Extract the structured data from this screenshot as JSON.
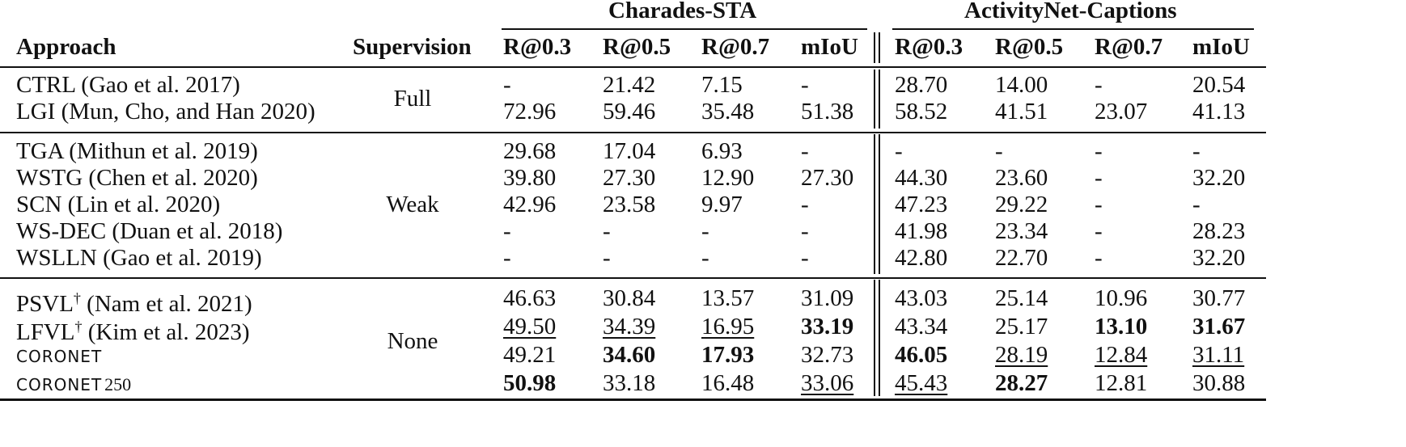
{
  "header": {
    "group_charades": "Charades-STA",
    "group_activitynet": "ActivityNet-Captions",
    "approach": "Approach",
    "supervision": "Supervision",
    "metrics": [
      "R@0.3",
      "R@0.5",
      "R@0.7",
      "mIoU",
      "R@0.3",
      "R@0.5",
      "R@0.7",
      "mIoU"
    ]
  },
  "groups": [
    {
      "supervision": "Full",
      "rows": [
        {
          "approach": "CTRL (Gao et al. 2017)",
          "dagger": "",
          "name_sc": "",
          "name_sub": "",
          "cells": [
            {
              "v": "-"
            },
            {
              "v": "21.42"
            },
            {
              "v": "7.15"
            },
            {
              "v": "-"
            },
            {
              "v": "28.70"
            },
            {
              "v": "14.00"
            },
            {
              "v": "-"
            },
            {
              "v": "20.54"
            }
          ]
        },
        {
          "approach": "LGI (Mun, Cho, and Han 2020)",
          "dagger": "",
          "name_sc": "",
          "name_sub": "",
          "cells": [
            {
              "v": "72.96"
            },
            {
              "v": "59.46"
            },
            {
              "v": "35.48"
            },
            {
              "v": "51.38"
            },
            {
              "v": "58.52"
            },
            {
              "v": "41.51"
            },
            {
              "v": "23.07"
            },
            {
              "v": "41.13"
            }
          ]
        }
      ]
    },
    {
      "supervision": "Weak",
      "rows": [
        {
          "approach": "TGA (Mithun et al. 2019)",
          "dagger": "",
          "name_sc": "",
          "name_sub": "",
          "cells": [
            {
              "v": "29.68"
            },
            {
              "v": "17.04"
            },
            {
              "v": "6.93"
            },
            {
              "v": "-"
            },
            {
              "v": "-"
            },
            {
              "v": "-"
            },
            {
              "v": "-"
            },
            {
              "v": "-"
            }
          ]
        },
        {
          "approach": "WSTG (Chen et al. 2020)",
          "dagger": "",
          "name_sc": "",
          "name_sub": "",
          "cells": [
            {
              "v": "39.80"
            },
            {
              "v": "27.30"
            },
            {
              "v": "12.90"
            },
            {
              "v": "27.30"
            },
            {
              "v": "44.30"
            },
            {
              "v": "23.60"
            },
            {
              "v": "-"
            },
            {
              "v": "32.20"
            }
          ]
        },
        {
          "approach": "SCN (Lin et al. 2020)",
          "dagger": "",
          "name_sc": "",
          "name_sub": "",
          "cells": [
            {
              "v": "42.96"
            },
            {
              "v": "23.58"
            },
            {
              "v": "9.97"
            },
            {
              "v": "-"
            },
            {
              "v": "47.23"
            },
            {
              "v": "29.22"
            },
            {
              "v": "-"
            },
            {
              "v": "-"
            }
          ]
        },
        {
          "approach": "WS-DEC (Duan et al. 2018)",
          "dagger": "",
          "name_sc": "",
          "name_sub": "",
          "cells": [
            {
              "v": "-"
            },
            {
              "v": "-"
            },
            {
              "v": "-"
            },
            {
              "v": "-"
            },
            {
              "v": "41.98"
            },
            {
              "v": "23.34"
            },
            {
              "v": "-"
            },
            {
              "v": "28.23"
            }
          ]
        },
        {
          "approach": "WSLLN (Gao et al. 2019)",
          "dagger": "",
          "name_sc": "",
          "name_sub": "",
          "cells": [
            {
              "v": "-"
            },
            {
              "v": "-"
            },
            {
              "v": "-"
            },
            {
              "v": "-"
            },
            {
              "v": "42.80"
            },
            {
              "v": "22.70"
            },
            {
              "v": "-"
            },
            {
              "v": "32.20"
            }
          ]
        }
      ]
    },
    {
      "supervision": "None",
      "rows": [
        {
          "approach": "PSVL",
          "dagger": "†",
          "approach_rest": " (Nam et al. 2021)",
          "name_sc": "",
          "name_sub": "",
          "cells": [
            {
              "v": "46.63"
            },
            {
              "v": "30.84"
            },
            {
              "v": "13.57"
            },
            {
              "v": "31.09"
            },
            {
              "v": "43.03"
            },
            {
              "v": "25.14"
            },
            {
              "v": "10.96"
            },
            {
              "v": "30.77"
            }
          ]
        },
        {
          "approach": "LFVL",
          "dagger": "†",
          "approach_rest": " (Kim et al. 2023)",
          "name_sc": "",
          "name_sub": "",
          "cells": [
            {
              "v": "49.50",
              "u": true
            },
            {
              "v": "34.39",
              "u": true
            },
            {
              "v": "16.95",
              "u": true
            },
            {
              "v": "33.19",
              "b": true
            },
            {
              "v": "43.34"
            },
            {
              "v": "25.17"
            },
            {
              "v": "13.10",
              "b": true
            },
            {
              "v": "31.67",
              "b": true
            }
          ]
        },
        {
          "approach": "",
          "dagger": "",
          "name_sc": "CORONET",
          "name_sub": "",
          "cells": [
            {
              "v": "49.21"
            },
            {
              "v": "34.60",
              "b": true
            },
            {
              "v": "17.93",
              "b": true
            },
            {
              "v": "32.73"
            },
            {
              "v": "46.05",
              "b": true
            },
            {
              "v": "28.19",
              "u": true
            },
            {
              "v": "12.84",
              "u": true
            },
            {
              "v": "31.11",
              "u": true
            }
          ]
        },
        {
          "approach": "",
          "dagger": "",
          "name_sc": "CORONET",
          "name_sub": "250",
          "cells": [
            {
              "v": "50.98",
              "b": true
            },
            {
              "v": "33.18"
            },
            {
              "v": "16.48"
            },
            {
              "v": "33.06",
              "u": true
            },
            {
              "v": "45.43",
              "u": true
            },
            {
              "v": "28.27",
              "b": true
            },
            {
              "v": "12.81"
            },
            {
              "v": "30.88"
            }
          ]
        }
      ]
    }
  ]
}
